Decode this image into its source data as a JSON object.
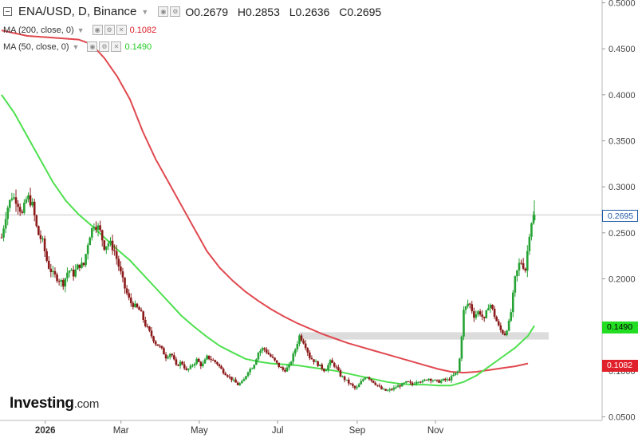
{
  "header": {
    "symbol": "ENA/USD, D, Binance",
    "ohlc": {
      "open": "O0.2679",
      "high": "H0.2853",
      "low": "L0.2636",
      "close": "C0.2695"
    }
  },
  "indicators": [
    {
      "label": "MA (200, close, 0)",
      "value": "0.1082",
      "color": "#d8202a"
    },
    {
      "label": "MA (50, close, 0)",
      "value": "0.1490",
      "color": "#22cc22"
    }
  ],
  "brand": {
    "name": "Investing",
    "suffix": ".com"
  },
  "chart_data": {
    "type": "candlestick",
    "title": "ENA/USD, D, Binance",
    "x_ticks": [
      "2026",
      "Mar",
      "May",
      "Jul",
      "Sep",
      "Nov"
    ],
    "y_ticks": [
      "0.0500",
      "0.1000",
      "0.1500",
      "0.2000",
      "0.2500",
      "0.3000",
      "0.3500",
      "0.4000",
      "0.4500",
      "0.5000"
    ],
    "ylim": [
      0.05,
      0.5
    ],
    "last_price": "0.2695",
    "ma200_last": "0.1082",
    "ma50_last": "0.1490",
    "resistance_zone": [
      0.134,
      0.142
    ],
    "close_path": [
      [
        0,
        0.245
      ],
      [
        4,
        0.275
      ],
      [
        8,
        0.29
      ],
      [
        12,
        0.285
      ],
      [
        16,
        0.27
      ],
      [
        20,
        0.29
      ],
      [
        24,
        0.28
      ],
      [
        28,
        0.25
      ],
      [
        32,
        0.24
      ],
      [
        36,
        0.215
      ],
      [
        40,
        0.205
      ],
      [
        44,
        0.2
      ],
      [
        48,
        0.195
      ],
      [
        52,
        0.21
      ],
      [
        56,
        0.205
      ],
      [
        60,
        0.215
      ],
      [
        64,
        0.215
      ],
      [
        68,
        0.245
      ],
      [
        72,
        0.26
      ],
      [
        76,
        0.255
      ],
      [
        80,
        0.235
      ],
      [
        84,
        0.24
      ],
      [
        88,
        0.23
      ],
      [
        92,
        0.21
      ],
      [
        96,
        0.19
      ],
      [
        100,
        0.175
      ],
      [
        104,
        0.17
      ],
      [
        108,
        0.165
      ],
      [
        112,
        0.15
      ],
      [
        116,
        0.14
      ],
      [
        120,
        0.13
      ],
      [
        124,
        0.125
      ],
      [
        128,
        0.115
      ],
      [
        132,
        0.12
      ],
      [
        136,
        0.105
      ],
      [
        140,
        0.11
      ],
      [
        144,
        0.1
      ],
      [
        148,
        0.105
      ],
      [
        152,
        0.112
      ],
      [
        156,
        0.105
      ],
      [
        160,
        0.115
      ],
      [
        164,
        0.112
      ],
      [
        168,
        0.108
      ],
      [
        172,
        0.1
      ],
      [
        176,
        0.095
      ],
      [
        180,
        0.09
      ],
      [
        184,
        0.085
      ],
      [
        188,
        0.088
      ],
      [
        192,
        0.1
      ],
      [
        196,
        0.105
      ],
      [
        200,
        0.12
      ],
      [
        204,
        0.125
      ],
      [
        208,
        0.118
      ],
      [
        212,
        0.112
      ],
      [
        216,
        0.105
      ],
      [
        220,
        0.1
      ],
      [
        224,
        0.105
      ],
      [
        228,
        0.12
      ],
      [
        232,
        0.138
      ],
      [
        236,
        0.13
      ],
      [
        240,
        0.115
      ],
      [
        244,
        0.11
      ],
      [
        248,
        0.105
      ],
      [
        252,
        0.1
      ],
      [
        256,
        0.11
      ],
      [
        260,
        0.105
      ],
      [
        264,
        0.095
      ],
      [
        268,
        0.09
      ],
      [
        272,
        0.085
      ],
      [
        276,
        0.08
      ],
      [
        280,
        0.088
      ],
      [
        284,
        0.095
      ],
      [
        288,
        0.09
      ],
      [
        292,
        0.085
      ],
      [
        296,
        0.08
      ],
      [
        300,
        0.078
      ],
      [
        304,
        0.08
      ],
      [
        308,
        0.083
      ],
      [
        312,
        0.085
      ],
      [
        316,
        0.088
      ],
      [
        320,
        0.085
      ],
      [
        324,
        0.09
      ],
      [
        328,
        0.088
      ],
      [
        332,
        0.092
      ],
      [
        336,
        0.09
      ],
      [
        340,
        0.088
      ],
      [
        344,
        0.09
      ],
      [
        348,
        0.09
      ],
      [
        352,
        0.095
      ],
      [
        356,
        0.1
      ],
      [
        360,
        0.165
      ],
      [
        364,
        0.175
      ],
      [
        368,
        0.16
      ],
      [
        372,
        0.165
      ],
      [
        376,
        0.155
      ],
      [
        380,
        0.175
      ],
      [
        384,
        0.16
      ],
      [
        388,
        0.145
      ],
      [
        392,
        0.14
      ],
      [
        396,
        0.155
      ],
      [
        400,
        0.2
      ],
      [
        404,
        0.22
      ],
      [
        408,
        0.21
      ],
      [
        412,
        0.26
      ],
      [
        415,
        0.2695
      ]
    ],
    "ma200": [
      [
        0,
        0.47
      ],
      [
        20,
        0.464
      ],
      [
        40,
        0.462
      ],
      [
        60,
        0.46
      ],
      [
        70,
        0.455
      ],
      [
        80,
        0.44
      ],
      [
        90,
        0.42
      ],
      [
        100,
        0.395
      ],
      [
        110,
        0.36
      ],
      [
        120,
        0.33
      ],
      [
        130,
        0.305
      ],
      [
        140,
        0.28
      ],
      [
        150,
        0.255
      ],
      [
        160,
        0.23
      ],
      [
        170,
        0.212
      ],
      [
        180,
        0.198
      ],
      [
        190,
        0.186
      ],
      [
        200,
        0.176
      ],
      [
        210,
        0.167
      ],
      [
        220,
        0.159
      ],
      [
        230,
        0.152
      ],
      [
        240,
        0.146
      ],
      [
        250,
        0.14
      ],
      [
        260,
        0.135
      ],
      [
        270,
        0.13
      ],
      [
        280,
        0.126
      ],
      [
        290,
        0.122
      ],
      [
        300,
        0.118
      ],
      [
        310,
        0.114
      ],
      [
        320,
        0.11
      ],
      [
        330,
        0.106
      ],
      [
        340,
        0.102
      ],
      [
        350,
        0.099
      ],
      [
        360,
        0.098
      ],
      [
        370,
        0.099
      ],
      [
        380,
        0.101
      ],
      [
        390,
        0.103
      ],
      [
        400,
        0.105
      ],
      [
        410,
        0.108
      ]
    ],
    "ma50": [
      [
        0,
        0.4
      ],
      [
        10,
        0.38
      ],
      [
        20,
        0.355
      ],
      [
        30,
        0.33
      ],
      [
        40,
        0.305
      ],
      [
        50,
        0.285
      ],
      [
        60,
        0.27
      ],
      [
        70,
        0.258
      ],
      [
        80,
        0.245
      ],
      [
        90,
        0.232
      ],
      [
        100,
        0.22
      ],
      [
        110,
        0.205
      ],
      [
        120,
        0.19
      ],
      [
        130,
        0.175
      ],
      [
        140,
        0.16
      ],
      [
        150,
        0.148
      ],
      [
        160,
        0.137
      ],
      [
        170,
        0.127
      ],
      [
        180,
        0.12
      ],
      [
        190,
        0.113
      ],
      [
        200,
        0.11
      ],
      [
        210,
        0.108
      ],
      [
        220,
        0.107
      ],
      [
        230,
        0.106
      ],
      [
        240,
        0.104
      ],
      [
        250,
        0.102
      ],
      [
        260,
        0.1
      ],
      [
        270,
        0.097
      ],
      [
        280,
        0.094
      ],
      [
        290,
        0.091
      ],
      [
        300,
        0.088
      ],
      [
        310,
        0.086
      ],
      [
        320,
        0.085
      ],
      [
        330,
        0.085
      ],
      [
        340,
        0.084
      ],
      [
        350,
        0.084
      ],
      [
        360,
        0.088
      ],
      [
        370,
        0.095
      ],
      [
        380,
        0.105
      ],
      [
        390,
        0.115
      ],
      [
        400,
        0.125
      ],
      [
        410,
        0.138
      ],
      [
        415,
        0.149
      ]
    ]
  }
}
